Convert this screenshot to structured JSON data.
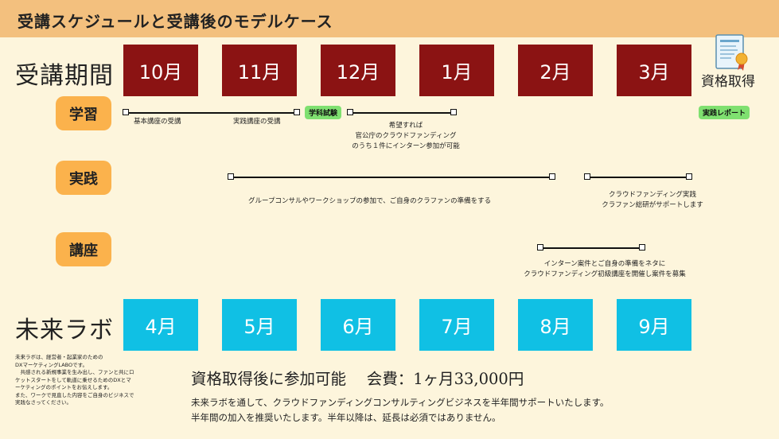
{
  "header": {
    "title": "受講スケジュールと受講後のモデルケース"
  },
  "rows": {
    "course_period": "受講期間",
    "mirai_lab": "未来ラボ"
  },
  "months_top": [
    "10月",
    "11月",
    "12月",
    "1月",
    "2月",
    "3月"
  ],
  "months_bottom": [
    "4月",
    "5月",
    "6月",
    "7月",
    "8月",
    "9月"
  ],
  "categories": {
    "study": "学習",
    "practice": "実践",
    "lecture": "講座"
  },
  "certification": {
    "label": "資格取得"
  },
  "study": {
    "basic": "基本講座の受講",
    "practical": "実践講座の受講",
    "exam_badge": "学科試験",
    "internship_lines": [
      "希望すれば",
      "官公庁のクラウドファンディング",
      "のうち１件にインターン参加が可能"
    ],
    "report_badge": "実践レポート"
  },
  "practice": {
    "desc1": "グループコンサルやワークショップの参加で、ご自身のクラファンの準備をする",
    "desc2_lines": [
      "クラウドファンディング実践",
      "クラファン総研がサポートします"
    ]
  },
  "lecture": {
    "desc_lines": [
      "インターン案件とご自身の準備をネタに",
      "クラウドファンディング初級講座を開催し案件を募集"
    ]
  },
  "lab_note": "未来ラボは、経営者・起業家のための\nDXマーケティングLABOです。\n　共感される新規事業を生み出し、ファンと共にロケットスタートをして軌道に乗せるためのDXとマーケティングのポイントをお伝えします。\nまた、ワークで見直した内容をご自身のビジネスで実践なさってください。",
  "join": {
    "headline": "資格取得後に参加可能　 会費：1ヶ月33,000円"
  },
  "description": {
    "line1": "未来ラボを通して、クラウドファンディングコンサルティングビジネスを半年間サポートいたします。",
    "line2": "半年間の加入を推奨いたします。半年以降は、延長は必須ではありません。"
  },
  "colors": {
    "header": "#f3c07e",
    "background": "#fdf5dc",
    "month_red": "#8b1313",
    "month_blue": "#10c0e4",
    "category": "#fbb24c",
    "badge_green": "#7fe070"
  },
  "icons": [
    "certificate-icon"
  ]
}
